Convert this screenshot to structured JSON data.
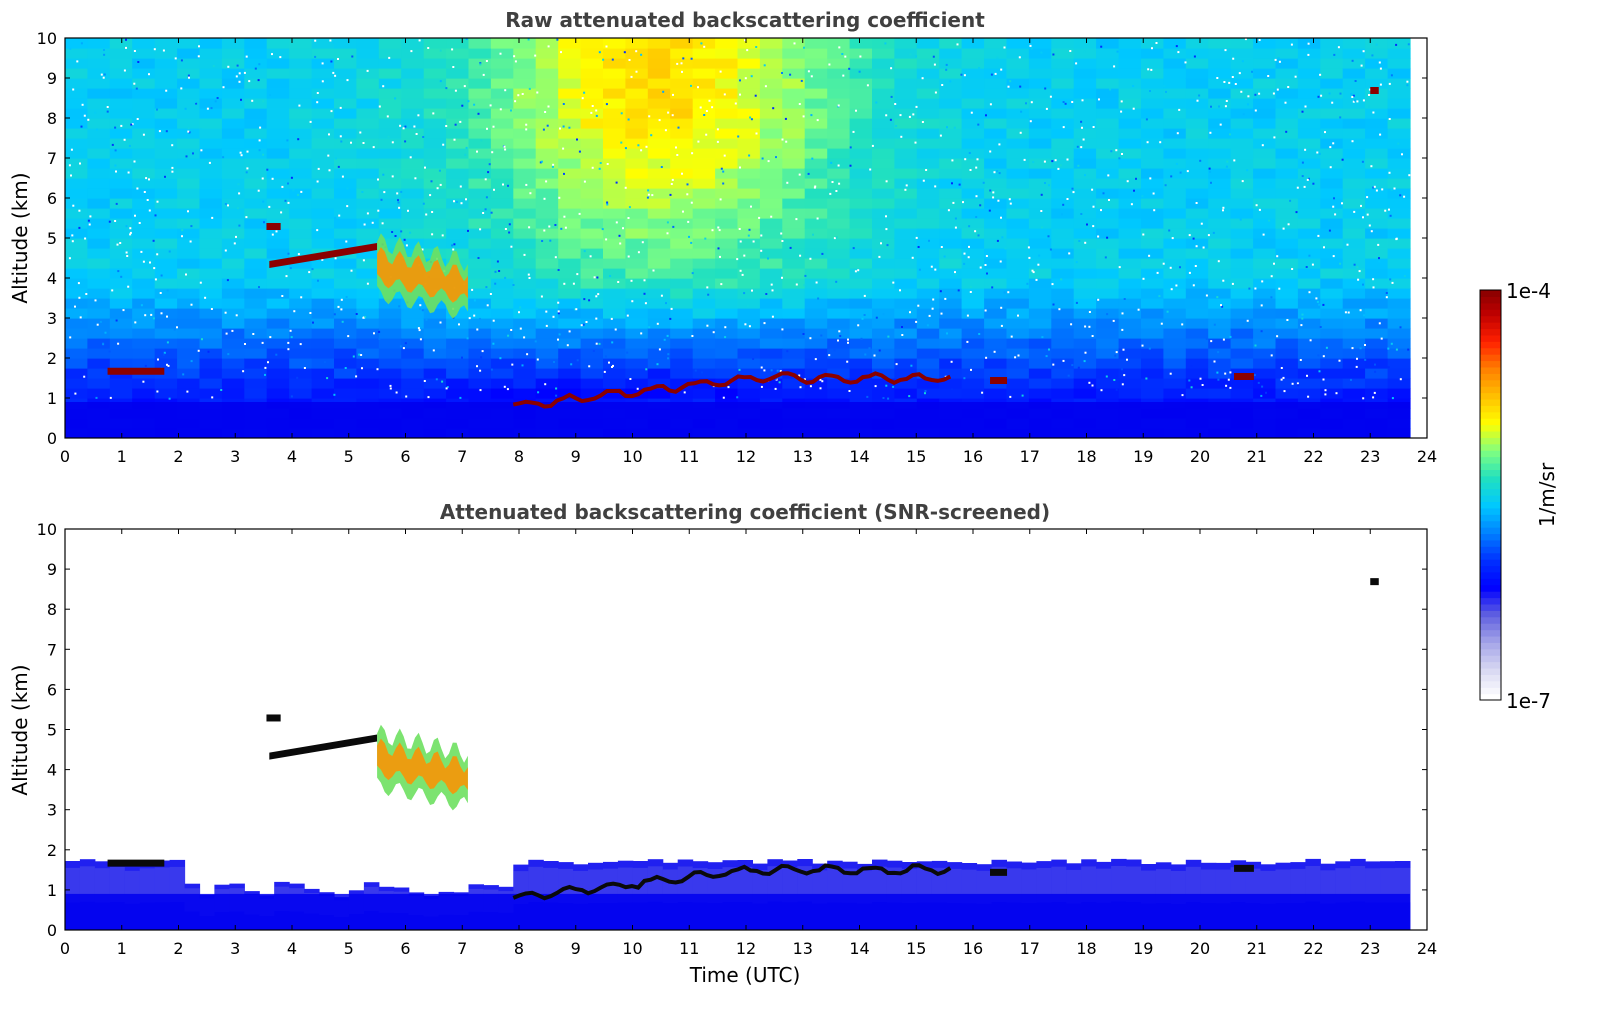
{
  "chart_data": [
    {
      "type": "heatmap",
      "title": "Raw attenuated backscattering coefficient",
      "xlabel": "",
      "ylabel": "Altitude (km)",
      "xlim": [
        0,
        24
      ],
      "ylim": [
        0,
        10
      ],
      "x_ticks": [
        "0",
        "1",
        "2",
        "3",
        "4",
        "5",
        "6",
        "7",
        "8",
        "9",
        "10",
        "11",
        "12",
        "13",
        "14",
        "15",
        "16",
        "17",
        "18",
        "19",
        "20",
        "21",
        "22",
        "23",
        "24"
      ],
      "y_ticks": [
        "0",
        "1",
        "2",
        "3",
        "4",
        "5",
        "6",
        "7",
        "8",
        "9",
        "10"
      ],
      "data_end_time": 23.7,
      "screened": false,
      "features": [
        {
          "kind": "cloud-layer",
          "t_start": 0.75,
          "t_end": 1.75,
          "alt_km": 1.68
        },
        {
          "kind": "cloud-layer",
          "t_start": 3.55,
          "t_end": 3.8,
          "alt_km": 5.3
        },
        {
          "kind": "cloud-layer",
          "t_start": 3.6,
          "t_end": 5.5,
          "alt_km_start": 4.35,
          "alt_km_end": 4.8
        },
        {
          "kind": "mid-level-cloud",
          "t_start": 5.5,
          "t_end": 7.1,
          "alt_km_top": 4.9,
          "alt_km_bottom": 3.1
        },
        {
          "kind": "boundary-layer-top",
          "t_start": 7.9,
          "t_end": 15.6,
          "alt_km_start": 0.8,
          "alt_km_end": 1.5
        },
        {
          "kind": "cloud-layer",
          "t_start": 16.3,
          "t_end": 16.6,
          "alt_km": 1.45
        },
        {
          "kind": "cloud-layer",
          "t_start": 20.6,
          "t_end": 20.95,
          "alt_km": 1.55
        },
        {
          "kind": "cloud-layer",
          "t_start": 23.0,
          "t_end": 23.15,
          "alt_km": 8.7
        }
      ]
    },
    {
      "type": "heatmap",
      "title": "Attenuated backscattering coefficient (SNR-screened)",
      "xlabel": "Time (UTC)",
      "ylabel": "Altitude (km)",
      "xlim": [
        0,
        24
      ],
      "ylim": [
        0,
        10
      ],
      "x_ticks": [
        "0",
        "1",
        "2",
        "3",
        "4",
        "5",
        "6",
        "7",
        "8",
        "9",
        "10",
        "11",
        "12",
        "13",
        "14",
        "15",
        "16",
        "17",
        "18",
        "19",
        "20",
        "21",
        "22",
        "23",
        "24"
      ],
      "y_ticks": [
        "0",
        "1",
        "2",
        "3",
        "4",
        "5",
        "6",
        "7",
        "8",
        "9",
        "10"
      ],
      "data_end_time": 23.7,
      "screened": true
    }
  ],
  "colorbar": {
    "label": "1/m/sr",
    "min_label": "1e-7",
    "max_label": "1e-4",
    "colors": [
      "#ffffff",
      "#d8d8f2",
      "#a5a5e8",
      "#6060e0",
      "#0000ff",
      "#0030ff",
      "#0080ff",
      "#00c8ff",
      "#20e0c0",
      "#80ff80",
      "#ffff00",
      "#ffc000",
      "#ff8000",
      "#ff2000",
      "#c00000",
      "#800000"
    ]
  }
}
